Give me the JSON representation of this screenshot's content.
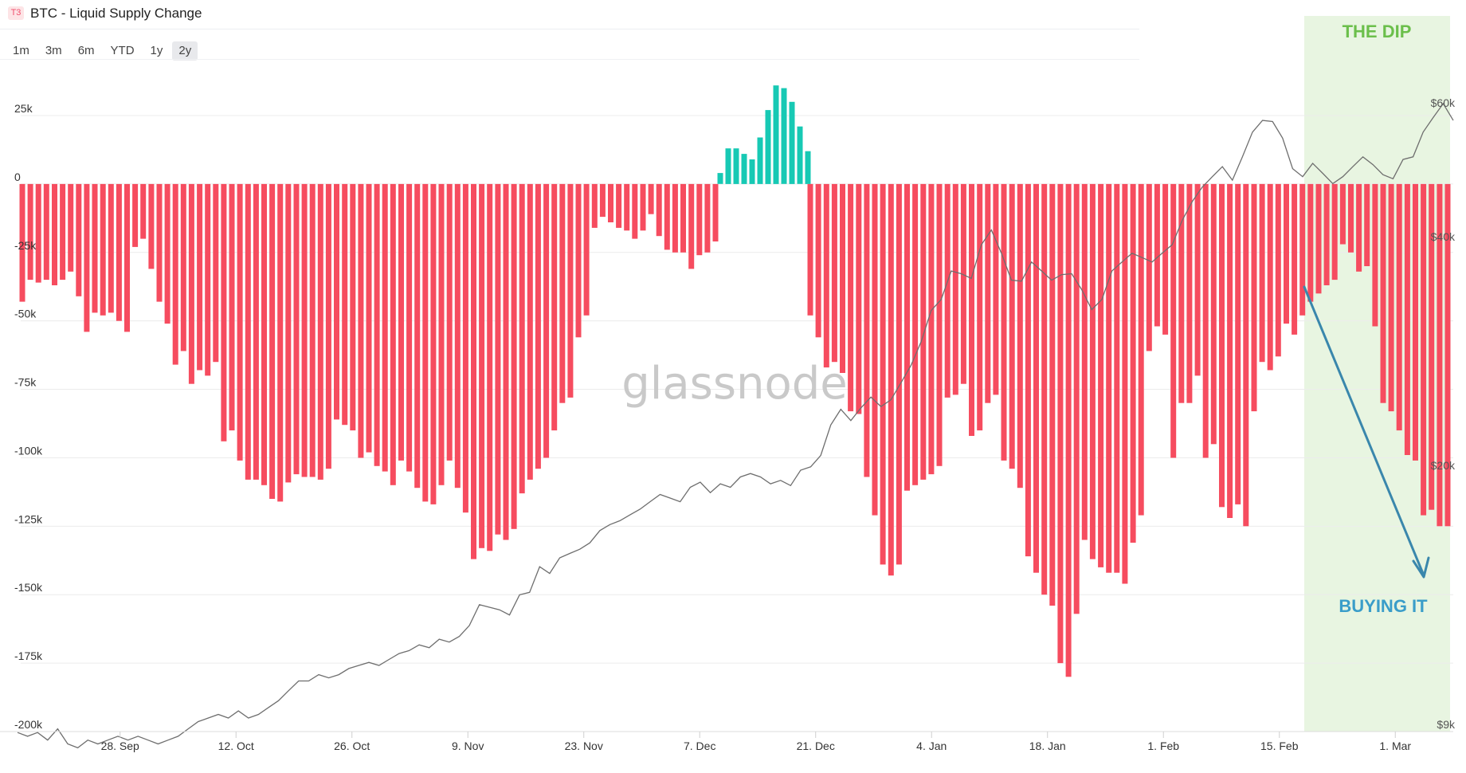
{
  "header": {
    "badge": "T3",
    "title": "BTC - Liquid Supply Change"
  },
  "ranges": [
    "1m",
    "3m",
    "6m",
    "YTD",
    "1y",
    "2y"
  ],
  "active_range": "2y",
  "watermark": "glassnode",
  "annotations": {
    "dip_label": "THE DIP",
    "buy_label": "BUYING IT"
  },
  "colors": {
    "negative": "#f64c5f",
    "positive": "#17c9b4",
    "price": "#6e6e6e",
    "dip_zone": "#e8f5e1",
    "dip_text": "#6bbf4b",
    "buy_text": "#3a9dc9",
    "arrow": "#3a87ac"
  },
  "chart_data": {
    "type": "bar",
    "title": "BTC - Liquid Supply Change",
    "left_axis": {
      "ticks": [
        "25k",
        "0",
        "-25k",
        "-50k",
        "-75k",
        "-100k",
        "-125k",
        "-150k",
        "-175k",
        "-200k"
      ],
      "range": [
        -200000,
        25000
      ]
    },
    "right_axis": {
      "ticks": [
        "$60k",
        "$40k",
        "$20k",
        "$9k"
      ],
      "scale": "log",
      "range": [
        9000,
        60000
      ]
    },
    "x_tick_labels": [
      "28. Sep",
      "12. Oct",
      "26. Oct",
      "9. Nov",
      "23. Nov",
      "7. Dec",
      "21. Dec",
      "4. Jan",
      "18. Jan",
      "1. Feb",
      "15. Feb",
      "1. Mar"
    ],
    "x_range": [
      "2020-09-16",
      "2021-03-08"
    ],
    "grid": true,
    "series": [
      {
        "values": [
          -43000,
          -35000,
          -36000,
          -35000,
          -37000,
          -35000,
          -32000,
          -41000,
          -54000,
          -47000,
          -48000,
          -47000,
          -50000,
          -54000,
          -23000,
          -20000,
          -31000,
          -43000,
          -51000,
          -66000,
          -61000,
          -73000,
          -68000,
          -70000,
          -65000,
          -94000,
          -90000,
          -101000,
          -108000,
          -108000,
          -110000,
          -115000,
          -116000,
          -109000,
          -106000,
          -107000,
          -107000,
          -108000,
          -104000,
          -86000,
          -88000,
          -90000,
          -100000,
          -98000,
          -103000,
          -105000,
          -110000,
          -101000,
          -105000,
          -111000,
          -116000,
          -117000,
          -110000,
          -101000,
          -111000,
          -120000,
          -137000,
          -133000,
          -134000,
          -128000,
          -130000,
          -126000,
          -113000,
          -108000,
          -104000,
          -100000,
          -90000,
          -80000,
          -78000,
          -56000,
          -48000,
          -16000,
          -12000,
          -14000,
          -16000,
          -17000,
          -20000,
          -17000,
          -11000,
          -19000,
          -24000,
          -25000,
          -25000,
          -31000,
          -26000,
          -25000,
          -21000
        ]
      },
      {
        "values": [
          4000,
          13000,
          13000,
          11000,
          9000,
          17000,
          27000,
          36000,
          35000,
          30000,
          21000,
          12000
        ]
      },
      {
        "values": [
          -48000,
          -56000,
          -67000,
          -65000,
          -69000,
          -83000,
          -84000,
          -107000,
          -121000,
          -139000,
          -143000,
          -139000,
          -112000,
          -110000,
          -108000,
          -106000,
          -103000,
          -78000,
          -77000,
          -73000,
          -92000,
          -90000,
          -80000,
          -77000,
          -101000,
          -104000,
          -111000,
          -136000,
          -142000,
          -150000,
          -154000,
          -175000,
          -180000,
          -157000,
          -130000,
          -137000,
          -140000,
          -142000,
          -142000,
          -146000,
          -131000,
          -121000,
          -61000,
          -52000,
          -55000,
          -100000,
          -80000,
          -80000,
          -70000,
          -100000,
          -95000,
          -118000,
          -122000,
          -117000,
          -125000,
          -83000,
          -65000,
          -68000,
          -63000,
          -51000,
          -55000,
          -48000,
          -43000,
          -40000,
          -37000,
          -35000,
          -22000,
          -25000,
          -32000,
          -30000,
          -52000,
          -80000,
          -83000,
          -90000,
          -99000,
          -101000,
          -121000,
          -119000,
          -125000,
          -125000
        ]
      }
    ],
    "price_usd": [
      8800,
      8700,
      8800,
      8600,
      8900,
      8500,
      8400,
      8600,
      8500,
      8600,
      8700,
      8600,
      8700,
      8600,
      8500,
      8600,
      8700,
      8900,
      9100,
      9200,
      9300,
      9200,
      9400,
      9200,
      9300,
      9500,
      9700,
      10000,
      10300,
      10300,
      10500,
      10400,
      10500,
      10700,
      10800,
      10900,
      10800,
      11000,
      11200,
      11300,
      11500,
      11400,
      11700,
      11600,
      11800,
      12200,
      13000,
      12900,
      12800,
      12600,
      13400,
      13500,
      14600,
      14300,
      15000,
      15200,
      15400,
      15700,
      16300,
      16600,
      16800,
      17100,
      17400,
      17800,
      18200,
      18000,
      17800,
      18600,
      18900,
      18300,
      18800,
      18600,
      19200,
      19400,
      19200,
      18800,
      19000,
      18700,
      19600,
      19800,
      20500,
      22500,
      23600,
      22800,
      23700,
      24500,
      23800,
      24300,
      25600,
      27000,
      29000,
      31900,
      33000,
      36000,
      35700,
      35200,
      39000,
      40800,
      38000,
      35000,
      34900,
      37000,
      36000,
      35000,
      35600,
      35700,
      34000,
      32000,
      33000,
      36000,
      37000,
      38000,
      37500,
      37000,
      38000,
      39000,
      42000,
      44500,
      46500,
      48000,
      49500,
      47500,
      51000,
      55000,
      57000,
      56800,
      54000,
      49200,
      48000,
      50000,
      48500,
      47000,
      48000,
      49500,
      51000,
      49800,
      48300,
      47700,
      50600,
      51000,
      55000,
      57500,
      60000,
      57000
    ]
  }
}
